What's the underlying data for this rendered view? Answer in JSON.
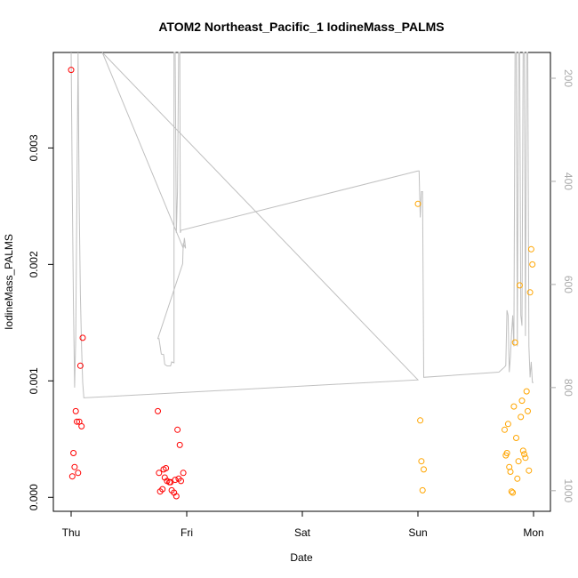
{
  "chart_data": {
    "type": "scatter",
    "title": "ATOM2 Northeast_Pacific_1 IodineMass_PALMS",
    "xlabel": "Date",
    "ylabel": "IodineMass_PALMS",
    "x_tick_labels": [
      "Thu",
      "Fri",
      "Sat",
      "Sun",
      "Mon"
    ],
    "xlim": [
      -0.2,
      4.1
    ],
    "ylim": [
      -0.00012,
      0.00382
    ],
    "y_ticks": [
      0.0,
      0.001,
      0.002,
      0.003
    ],
    "y_tick_labels": [
      "0.000",
      "0.001",
      "0.002",
      "0.003"
    ],
    "right_axis": {
      "label": "",
      "reversed": true,
      "lim": [
        1040,
        150
      ],
      "ticks": [
        200,
        400,
        600,
        800,
        1000
      ],
      "tick_labels": [
        "200",
        "400",
        "600",
        "800",
        "1000"
      ],
      "color": "#aaaaaa"
    },
    "grid": false,
    "series": [
      {
        "color": "#ff0000",
        "marker": "open-circle",
        "points": [
          [
            0.0,
            0.00367
          ],
          [
            0.01,
            0.00018
          ],
          [
            0.02,
            0.00038
          ],
          [
            0.03,
            0.00026
          ],
          [
            0.04,
            0.00074
          ],
          [
            0.05,
            0.00065
          ],
          [
            0.06,
            0.00021
          ],
          [
            0.07,
            0.00065
          ],
          [
            0.08,
            0.00113
          ],
          [
            0.09,
            0.00061
          ],
          [
            0.1,
            0.00137
          ],
          [
            0.75,
            0.00074
          ],
          [
            0.76,
            0.00021
          ],
          [
            0.77,
            5e-05
          ],
          [
            0.79,
            7e-05
          ],
          [
            0.8,
            0.00024
          ],
          [
            0.81,
            0.00017
          ],
          [
            0.82,
            0.00025
          ],
          [
            0.83,
            0.00014
          ],
          [
            0.85,
            0.00013
          ],
          [
            0.86,
            0.00013
          ],
          [
            0.87,
            6e-05
          ],
          [
            0.89,
            4e-05
          ],
          [
            0.9,
            0.00015
          ],
          [
            0.91,
            1e-05
          ],
          [
            0.92,
            0.00058
          ],
          [
            0.93,
            0.00016
          ],
          [
            0.94,
            0.00045
          ],
          [
            0.95,
            0.00014
          ],
          [
            0.97,
            0.00021
          ]
        ]
      },
      {
        "color": "#ffa500",
        "marker": "open-circle",
        "points": [
          [
            3.0,
            0.00252
          ],
          [
            3.02,
            0.00066
          ],
          [
            3.03,
            0.00031
          ],
          [
            3.04,
            6e-05
          ],
          [
            3.05,
            0.00024
          ],
          [
            3.75,
            0.00058
          ],
          [
            3.76,
            0.00036
          ],
          [
            3.77,
            0.00038
          ],
          [
            3.78,
            0.00063
          ],
          [
            3.79,
            0.00026
          ],
          [
            3.8,
            0.00022
          ],
          [
            3.81,
            5e-05
          ],
          [
            3.82,
            4e-05
          ],
          [
            3.83,
            0.00078
          ],
          [
            3.84,
            0.00133
          ],
          [
            3.85,
            0.00051
          ],
          [
            3.86,
            0.00016
          ],
          [
            3.87,
            0.00031
          ],
          [
            3.88,
            0.00182
          ],
          [
            3.89,
            0.00069
          ],
          [
            3.9,
            0.00083
          ],
          [
            3.91,
            0.0004
          ],
          [
            3.92,
            0.00037
          ],
          [
            3.93,
            0.00034
          ],
          [
            3.94,
            0.00091
          ],
          [
            3.95,
            0.00074
          ],
          [
            3.96,
            0.00023
          ],
          [
            3.97,
            0.00176
          ],
          [
            3.98,
            0.00213
          ],
          [
            3.99,
            0.002
          ]
        ]
      }
    ],
    "altitude_series": {
      "color": "#c0c0c0",
      "axis": "right",
      "points": [
        [
          0.0,
          150
        ],
        [
          0.01,
          420
        ],
        [
          0.02,
          640
        ],
        [
          0.03,
          800
        ],
        [
          0.04,
          700
        ],
        [
          0.05,
          420
        ],
        [
          0.06,
          150
        ],
        [
          0.07,
          450
        ],
        [
          0.08,
          620
        ],
        [
          0.09,
          720
        ],
        [
          0.1,
          790
        ],
        [
          0.11,
          820
        ],
        [
          3.0,
          785
        ],
        [
          0.27,
          150
        ],
        [
          0.97,
          530
        ],
        [
          0.98,
          510
        ],
        [
          0.99,
          530
        ],
        [
          0.97,
          520
        ],
        [
          0.965,
          560
        ],
        [
          0.75,
          705
        ],
        [
          0.76,
          705
        ],
        [
          0.77,
          720
        ],
        [
          0.78,
          735
        ],
        [
          0.8,
          736
        ],
        [
          0.81,
          755
        ],
        [
          0.83,
          758
        ],
        [
          0.86,
          758
        ],
        [
          0.87,
          750
        ],
        [
          0.89,
          752
        ],
        [
          0.89,
          150
        ],
        [
          0.9,
          150
        ],
        [
          0.91,
          500
        ],
        [
          0.92,
          420
        ],
        [
          0.93,
          150
        ],
        [
          0.94,
          150
        ],
        [
          0.945,
          500
        ],
        [
          0.95,
          495
        ],
        [
          3.0,
          380
        ],
        [
          3.01,
          380
        ],
        [
          3.02,
          470
        ],
        [
          3.03,
          420
        ],
        [
          3.04,
          420
        ],
        [
          3.05,
          780
        ],
        [
          3.7,
          770
        ],
        [
          3.75,
          760
        ],
        [
          3.76,
          757
        ],
        [
          3.77,
          650
        ],
        [
          3.78,
          660
        ],
        [
          3.79,
          770
        ],
        [
          3.8,
          740
        ],
        [
          3.81,
          695
        ],
        [
          3.82,
          660
        ],
        [
          3.83,
          720
        ],
        [
          3.84,
          150
        ],
        [
          3.85,
          150
        ],
        [
          3.86,
          720
        ],
        [
          3.87,
          150
        ],
        [
          3.88,
          150
        ],
        [
          3.89,
          660
        ],
        [
          3.9,
          680
        ],
        [
          3.91,
          150
        ],
        [
          3.92,
          150
        ],
        [
          3.93,
          700
        ],
        [
          3.94,
          150
        ],
        [
          3.95,
          150
        ],
        [
          3.96,
          720
        ],
        [
          3.97,
          780
        ],
        [
          3.98,
          750
        ],
        [
          3.99,
          790
        ],
        [
          4.0,
          790
        ]
      ]
    }
  }
}
